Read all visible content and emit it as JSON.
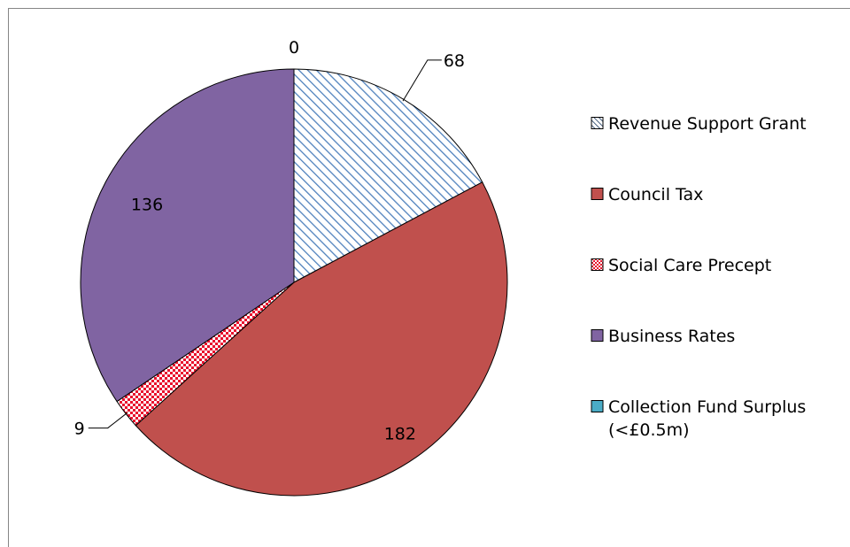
{
  "chart_data": {
    "type": "pie",
    "title": "",
    "series": [
      {
        "categories": [
          "Revenue Support Grant",
          "Council Tax",
          "Social Care Precept",
          "Business Rates",
          "Collection Fund Surplus (<£0.5m)"
        ],
        "values": [
          68,
          182,
          9,
          136,
          0
        ],
        "data_labels": [
          "68",
          "182",
          "9",
          "136",
          "0"
        ]
      }
    ],
    "slice_order_note": "clockwise from 12 o'clock: Collection Fund Surplus, Revenue Support Grant, Council Tax, Social Care Precept, Business Rates",
    "legend": {
      "position": "right",
      "items": [
        {
          "lines": [
            "Revenue Support Grant"
          ],
          "pattern": "diagonal-stripes",
          "color": "#4f81bd"
        },
        {
          "lines": [
            "Council Tax"
          ],
          "pattern": "solid",
          "color": "#c0504d"
        },
        {
          "lines": [
            "Social Care Precept"
          ],
          "pattern": "checkerboard",
          "color": "#e8112d"
        },
        {
          "lines": [
            "Business Rates"
          ],
          "pattern": "solid",
          "color": "#8064a2"
        },
        {
          "lines": [
            "Collection Fund Surplus",
            "(<£0.5m)"
          ],
          "pattern": "solid",
          "color": "#4bacc6"
        }
      ]
    }
  }
}
